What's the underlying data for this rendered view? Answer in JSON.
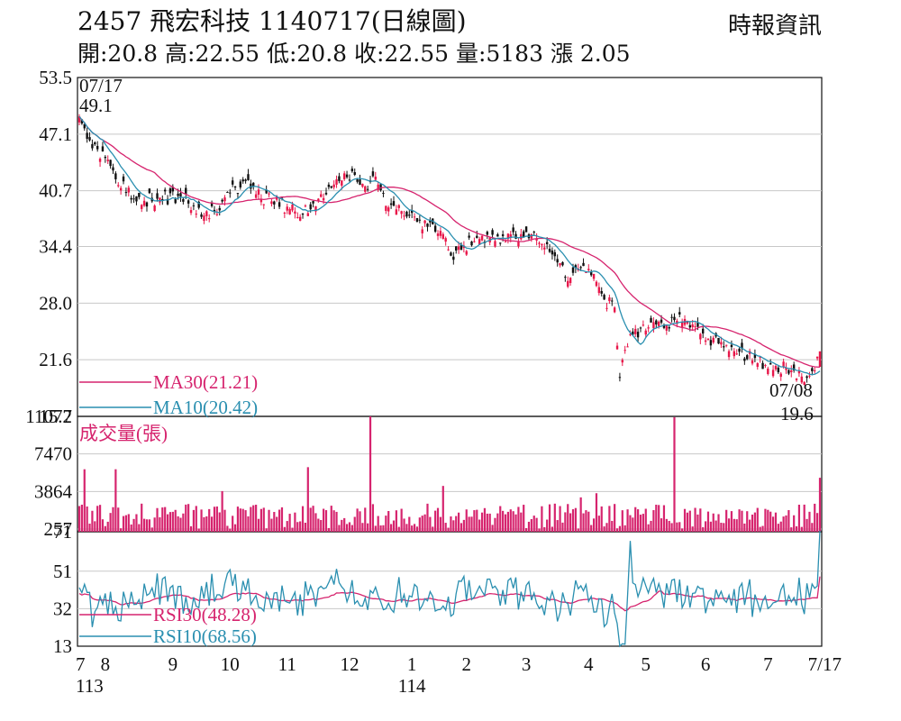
{
  "header": {
    "title": "2457  飛宏科技 1140717(日線圖)",
    "source": "時報資訊",
    "ohlc": "開:20.8 高:22.55 低:20.8 收:22.55 量:5183 漲 2.05"
  },
  "colors": {
    "up": "#e8174a",
    "down": "#111111",
    "ma30": "#d6246e",
    "ma10": "#2a8fb0",
    "volume": "#d6246e",
    "rsi30": "#d6246e",
    "rsi10": "#2a8fb0"
  },
  "chart_data": [
    {
      "type": "candlestick",
      "panel": "price",
      "ylim": [
        15.2,
        53.5
      ],
      "y_ticks": [
        "53.5",
        "47.1",
        "40.7",
        "34.4",
        "28.0",
        "21.6",
        "15.2"
      ],
      "y_tick_values": [
        53.5,
        47.1,
        40.7,
        34.4,
        28.0,
        21.6,
        15.2
      ],
      "series": [
        {
          "name": "MA30",
          "label": "MA30(21.21)",
          "last": 21.21
        },
        {
          "name": "MA10",
          "label": "MA10(20.42)",
          "last": 20.42
        }
      ],
      "annotations": {
        "high": {
          "date": "07/17",
          "value": "49.1"
        },
        "low": {
          "date": "07/08",
          "value": "19.6"
        }
      },
      "last_bar": {
        "open": 20.8,
        "high": 22.55,
        "low": 20.8,
        "close": 22.55
      },
      "anchor_points": [
        [
          0,
          49.1
        ],
        [
          5,
          45.5
        ],
        [
          12,
          43.5
        ],
        [
          18,
          40.5
        ],
        [
          22,
          39.5
        ],
        [
          30,
          39.8
        ],
        [
          38,
          40.1
        ],
        [
          44,
          39.0
        ],
        [
          48,
          37.9
        ],
        [
          52,
          38.3
        ],
        [
          58,
          40.5
        ],
        [
          64,
          41.8
        ],
        [
          68,
          40.3
        ],
        [
          74,
          39.5
        ],
        [
          80,
          38.9
        ],
        [
          86,
          38.0
        ],
        [
          92,
          39.8
        ],
        [
          100,
          41.8
        ],
        [
          106,
          42.5
        ],
        [
          110,
          41.2
        ],
        [
          114,
          42.3
        ],
        [
          118,
          39.0
        ],
        [
          124,
          38.4
        ],
        [
          130,
          37.2
        ],
        [
          136,
          36.9
        ],
        [
          140,
          35.8
        ],
        [
          144,
          32.9
        ],
        [
          148,
          34.5
        ],
        [
          152,
          35.0
        ],
        [
          158,
          35.4
        ],
        [
          164,
          35.0
        ],
        [
          170,
          35.8
        ],
        [
          176,
          35.3
        ],
        [
          182,
          33.5
        ],
        [
          188,
          30.5
        ],
        [
          194,
          32.2
        ],
        [
          198,
          31.3
        ],
        [
          202,
          28.4
        ],
        [
          206,
          27.5
        ],
        [
          208,
          19.6
        ],
        [
          212,
          24.5
        ],
        [
          218,
          24.9
        ],
        [
          224,
          25.8
        ],
        [
          230,
          26.0
        ],
        [
          236,
          25.6
        ],
        [
          242,
          24.0
        ],
        [
          248,
          23.0
        ],
        [
          254,
          22.5
        ],
        [
          260,
          21.8
        ],
        [
          264,
          21.0
        ],
        [
          268,
          20.9
        ],
        [
          274,
          20.4
        ],
        [
          278,
          19.7
        ],
        [
          282,
          20.3
        ],
        [
          285,
          22.55
        ]
      ]
    },
    {
      "type": "bar",
      "panel": "volume",
      "title": "成交量(張)",
      "ylim": [
        0,
        11077
      ],
      "y_ticks": [
        "11077",
        "7470",
        "3864",
        "257"
      ],
      "y_tick_values": [
        11077,
        7470,
        3864,
        257
      ],
      "spikes": [
        [
          2,
          6000
        ],
        [
          14,
          6000
        ],
        [
          55,
          3900
        ],
        [
          88,
          6200
        ],
        [
          112,
          11077
        ],
        [
          140,
          4400
        ],
        [
          193,
          3300
        ],
        [
          199,
          3700
        ],
        [
          229,
          11000
        ],
        [
          285,
          5183
        ]
      ]
    },
    {
      "type": "line",
      "panel": "rsi",
      "ylim": [
        13,
        71
      ],
      "y_ticks": [
        "71",
        "51",
        "32",
        "13"
      ],
      "y_tick_values": [
        71,
        51,
        32,
        13
      ],
      "series": [
        {
          "name": "RSI30",
          "label": "RSI30(48.28)",
          "last": 48.28
        },
        {
          "name": "RSI10",
          "label": "RSI10(68.56)",
          "last": 68.56
        }
      ]
    }
  ],
  "x_axis": {
    "labels": [
      "7",
      "8",
      "9",
      "10",
      "11",
      "12",
      "1",
      "2",
      "3",
      "4",
      "5",
      "6",
      "7",
      "7/17"
    ],
    "label_index": [
      0,
      10,
      36,
      58,
      80,
      104,
      128,
      149,
      172,
      196,
      218,
      241,
      265,
      285
    ],
    "year_labels": [
      {
        "text": "113",
        "index": 0
      },
      {
        "text": "114",
        "index": 128
      }
    ]
  }
}
